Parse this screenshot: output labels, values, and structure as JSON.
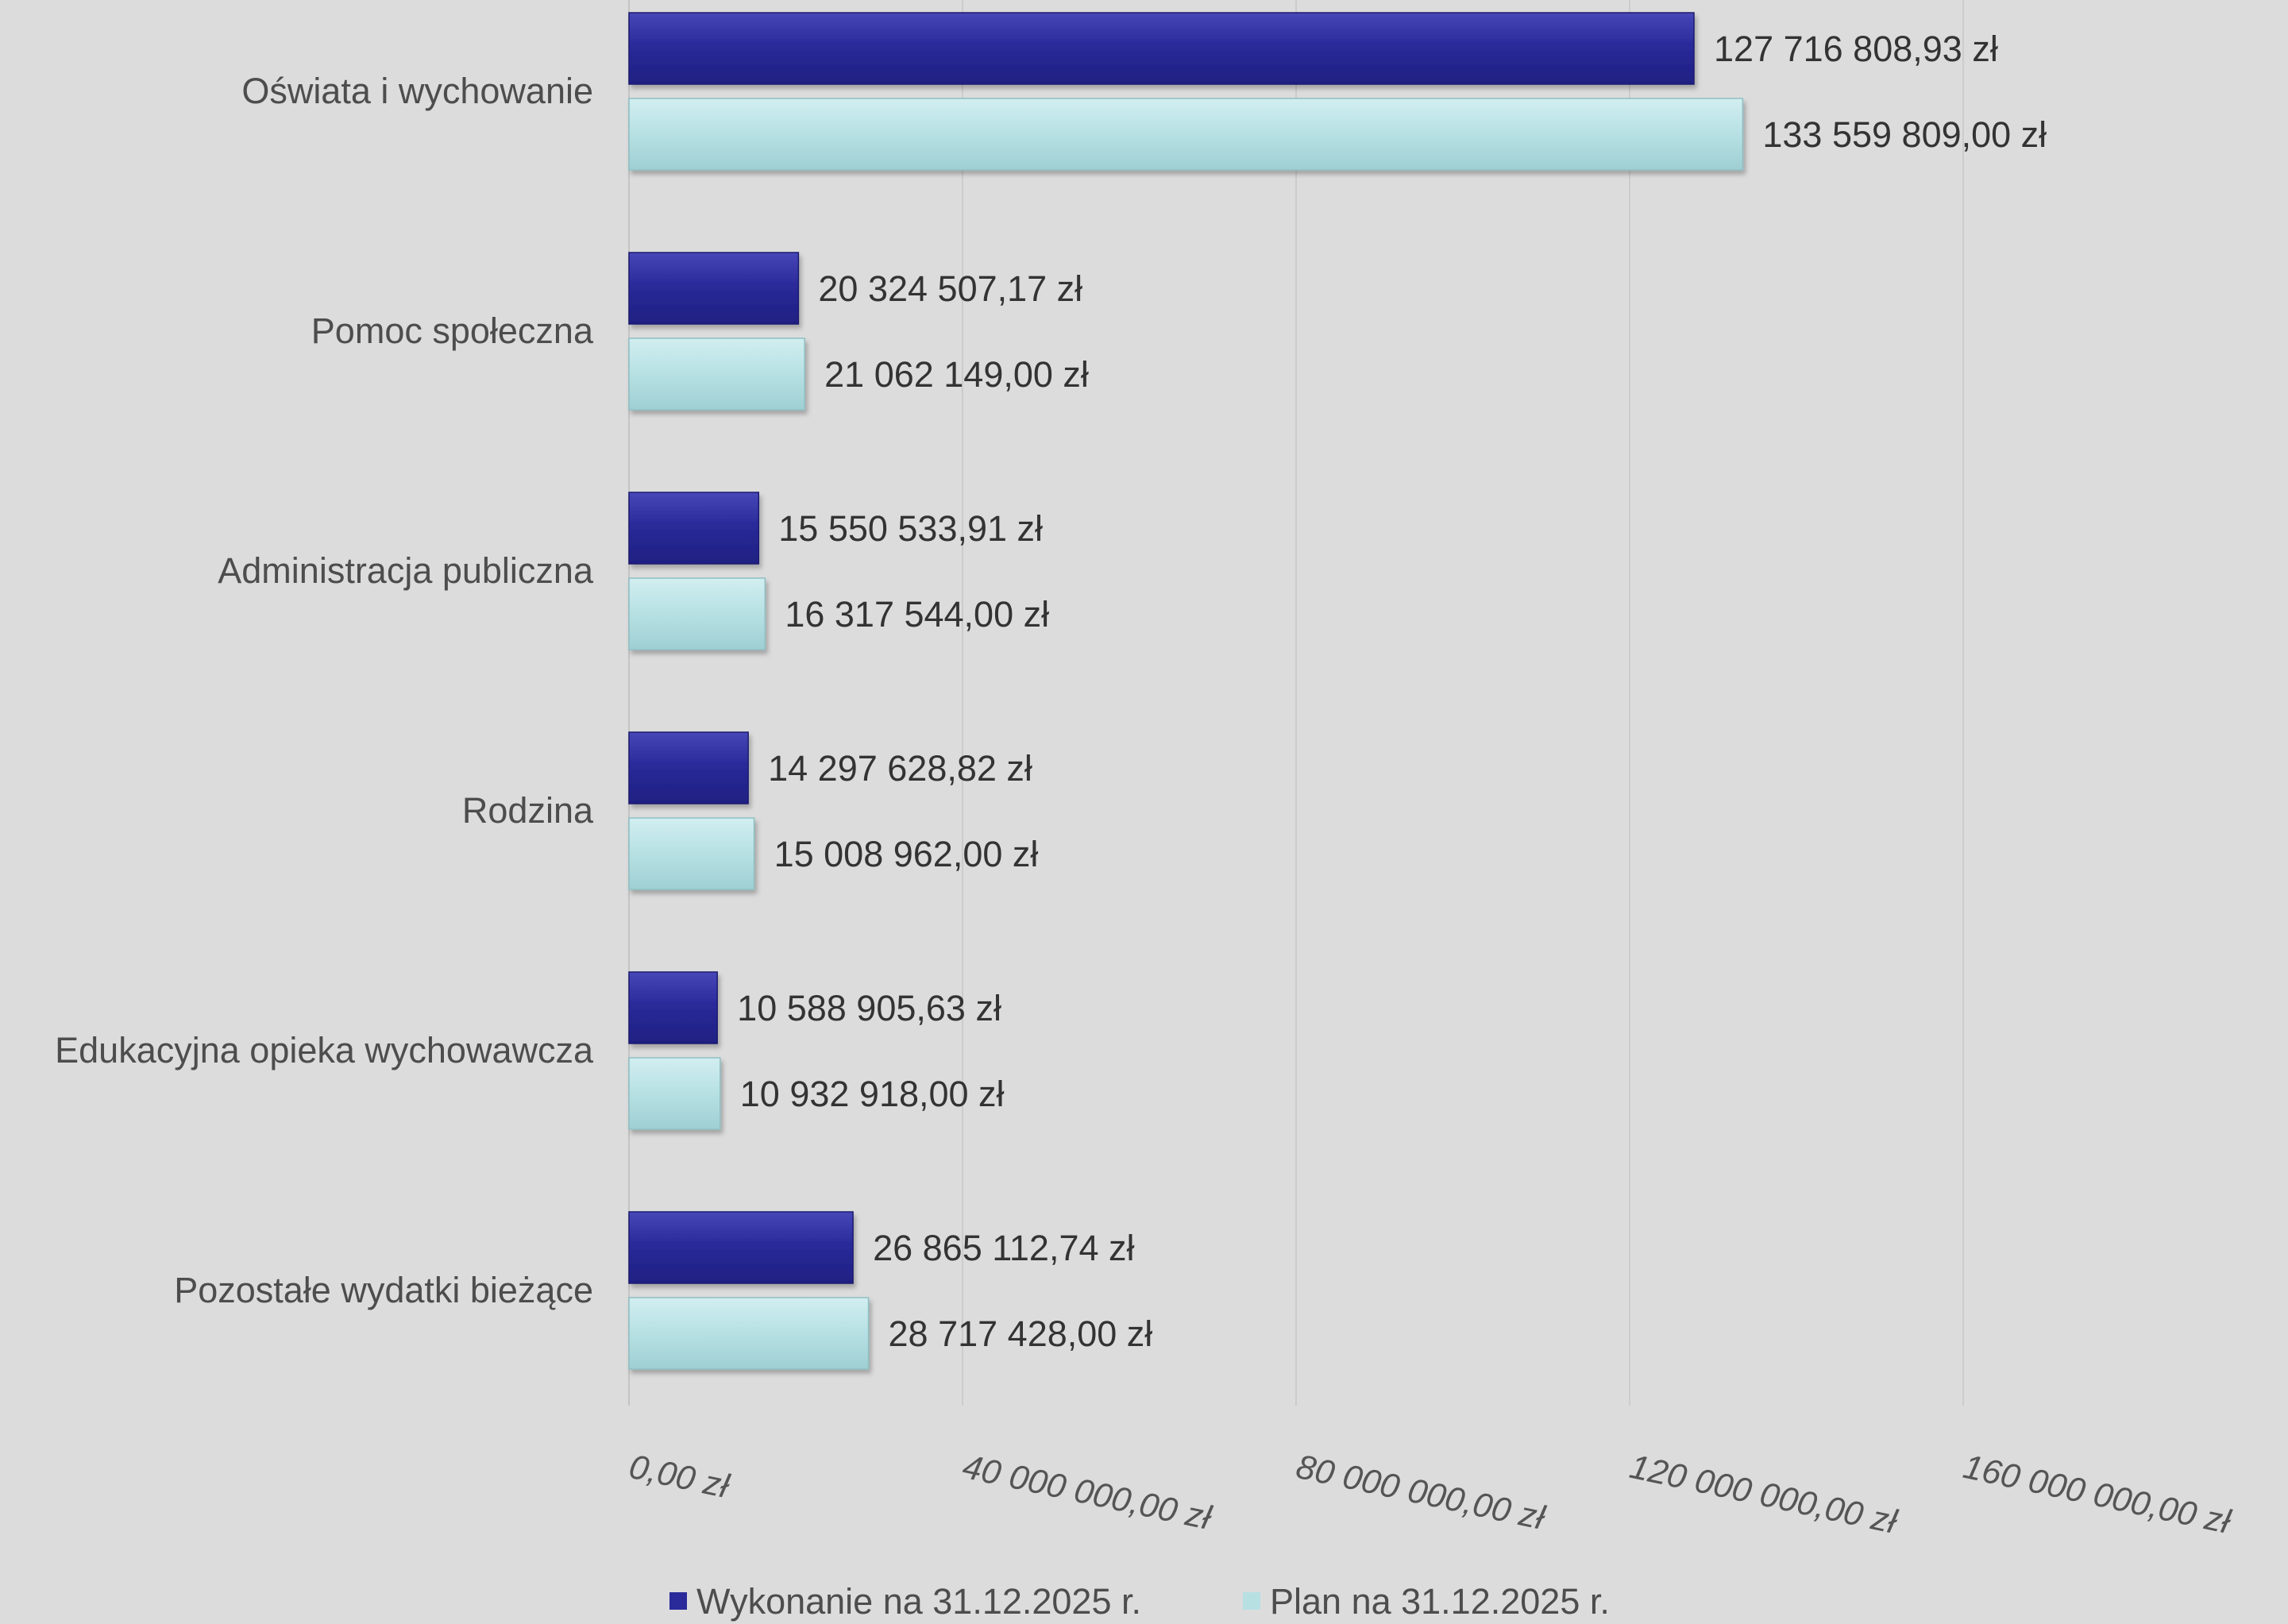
{
  "chart_data": {
    "type": "bar",
    "orientation": "horizontal",
    "categories": [
      "Oświata i wychowanie",
      "Pomoc społeczna",
      "Administracja publiczna",
      "Rodzina",
      "Edukacyjna opieka wychowawcza",
      "Pozostałe wydatki bieżące"
    ],
    "series": [
      {
        "name": "Wykonanie na 31.12.2025 r.",
        "color": "#2a2a9a",
        "values": [
          127716808.93,
          20324507.17,
          15550533.91,
          14297628.82,
          10588905.63,
          26865112.74
        ],
        "labels": [
          "127 716 808,93 zł",
          "20 324 507,17 zł",
          "15 550 533,91 zł",
          "14 297 628,82 zł",
          "10 588 905,63 zł",
          "26 865 112,74 zł"
        ]
      },
      {
        "name": "Plan na 31.12.2025 r.",
        "color": "#b7e0e3",
        "values": [
          133559809.0,
          21062149.0,
          16317544.0,
          15008962.0,
          10932918.0,
          28717428.0
        ],
        "labels": [
          "133 559 809,00 zł",
          "21 062 149,00 zł",
          "16 317 544,00 zł",
          "15 008 962,00 zł",
          "10 932 918,00 zł",
          "28 717 428,00 zł"
        ]
      }
    ],
    "xlim": [
      0,
      200000000
    ],
    "x_ticks": [
      0,
      40000000,
      80000000,
      120000000,
      160000000
    ],
    "x_tick_labels": [
      "0,00 zł",
      "40 000 000,00 zł",
      "80 000 000,00 zł",
      "120 000 000,00 zł",
      "160 000 000,00 zł"
    ],
    "grid": true,
    "legend_position": "bottom"
  }
}
